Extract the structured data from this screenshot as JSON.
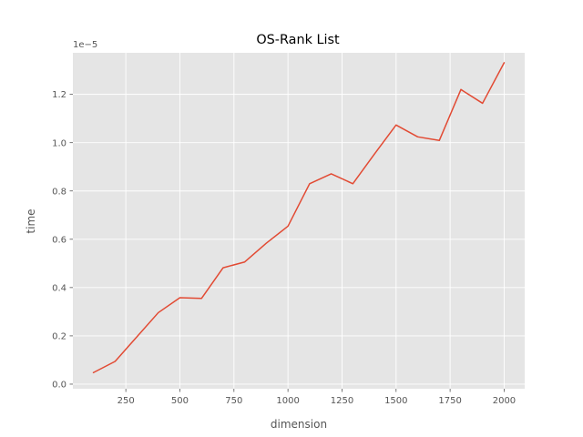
{
  "colors": {
    "plot_background": "#E5E5E5",
    "grid": "#FFFFFF",
    "line": "#E24A33",
    "tick_text": "#555555",
    "title_text": "#000000"
  },
  "chart_data": {
    "type": "line",
    "title": "OS-Rank List",
    "xlabel": "dimension",
    "ylabel": "time",
    "y_offset_label": "1e−5",
    "xlim": [
      5,
      2095
    ],
    "ylim": [
      -1.9e-07,
      1.372e-05
    ],
    "xticks": [
      250,
      500,
      750,
      1000,
      1250,
      1500,
      1750,
      2000
    ],
    "xtick_labels": [
      "250",
      "500",
      "750",
      "1000",
      "1250",
      "1500",
      "1750",
      "2000"
    ],
    "yticks": [
      0,
      2e-06,
      4e-06,
      6e-06,
      8e-06,
      1e-05,
      1.2e-05
    ],
    "ytick_labels": [
      "0.0",
      "0.2",
      "0.4",
      "0.6",
      "0.8",
      "1.0",
      "1.2"
    ],
    "grid": true,
    "series": [
      {
        "x": [
          100,
          200,
          300,
          400,
          500,
          600,
          700,
          800,
          900,
          1000,
          1100,
          1200,
          1300,
          1400,
          1500,
          1600,
          1700,
          1800,
          1900,
          2000
        ],
        "values": [
          4.8e-07,
          9.4e-07,
          1.95e-06,
          2.96e-06,
          3.58e-06,
          3.55e-06,
          4.82e-06,
          5.06e-06,
          5.84e-06,
          6.54e-06,
          8.3e-06,
          8.71e-06,
          8.3e-06,
          9.53e-06,
          1.073e-05,
          1.024e-05,
          1.009e-05,
          1.22e-05,
          1.163e-05,
          1.331e-05
        ]
      }
    ]
  }
}
